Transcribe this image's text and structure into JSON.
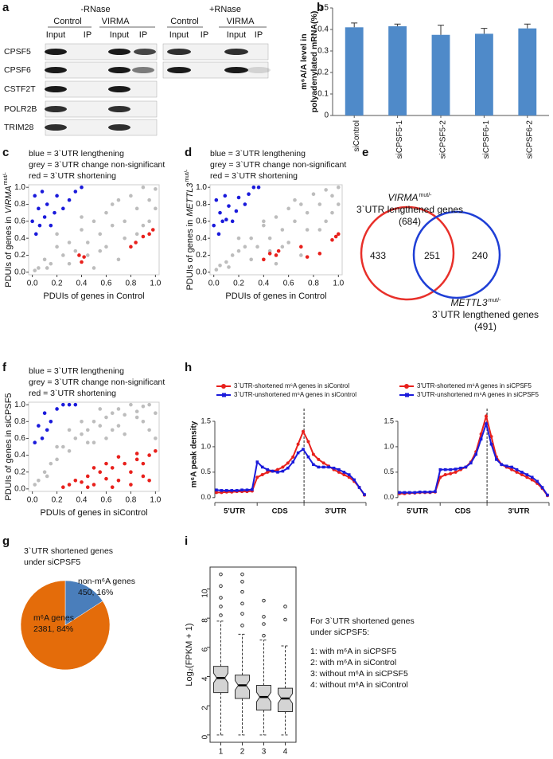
{
  "panel_labels": [
    "a",
    "b",
    "c",
    "d",
    "e",
    "f",
    "g",
    "h",
    "i"
  ],
  "blot": {
    "minus_rnase": "-RNase",
    "plus_rnase": "+RNase",
    "groups": [
      "Control",
      "VIRMA",
      "Control",
      "VIRMA"
    ],
    "lanes": [
      "Input",
      "IP",
      "Input",
      "IP",
      "Input",
      "IP",
      "Input",
      "IP"
    ],
    "proteins": [
      "CPSF5",
      "CPSF6",
      "CSTF2T",
      "POLR2B",
      "TRIM28"
    ]
  },
  "venn": {
    "sets": [
      {
        "label": "VIRMA",
        "sup": "mut/-",
        "desc": "3`UTR lengthened genes",
        "total": "(684)",
        "color": "#e8302a"
      },
      {
        "label": "METTL3",
        "sup": "mut/-",
        "desc": "3`UTR lengthened genes",
        "total": "(491)",
        "color": "#1f3fd6"
      }
    ],
    "only_first": 433,
    "both": 251,
    "only_second": 240
  },
  "chart_data": [
    {
      "type": "bar",
      "ylabel": [
        "m⁶A/A level in",
        "polyadenylated mRNA(%)"
      ],
      "categories": [
        "siControl",
        "siCPSF5-1",
        "siCPSF5-2",
        "siCPSF6-1",
        "siCPSF6-2"
      ],
      "values": [
        0.41,
        0.415,
        0.375,
        0.38,
        0.405
      ],
      "errors": [
        0.02,
        0.01,
        0.045,
        0.025,
        0.02
      ],
      "color": "#4f8ac9",
      "ylim": [
        0,
        0.5
      ],
      "yticks": [
        0,
        0.1,
        0.2,
        0.3,
        0.4,
        0.5
      ]
    },
    {
      "type": "scatter",
      "legend_lines": [
        "blue = 3`UTR lengthening",
        "grey = 3`UTR change non-significant",
        "red = 3`UTR shortening"
      ],
      "xlabel": "PDUIs of genes in Control",
      "ylabel": "PDUIs of genes in",
      "ylabel_gene": "VIRMA",
      "ylabel_sup": "mut/-",
      "xlim": [
        -0.03,
        1.03
      ],
      "ylim": [
        -0.03,
        1.03
      ],
      "xticks": [
        {
          "value": 0,
          "label": "0.0"
        },
        0.2,
        0.4,
        0.6,
        0.8,
        {
          "value": 1,
          "label": "1.0"
        }
      ],
      "yticks": [
        {
          "value": 0,
          "label": "0.0"
        },
        0.2,
        0.4,
        0.6,
        0.8,
        {
          "value": 1,
          "label": "1.0"
        }
      ],
      "series": [
        {
          "color": "#bdbdbd",
          "x": [
            0.05,
            0.1,
            0.15,
            0.2,
            0.25,
            0.3,
            0.35,
            0.4,
            0.45,
            0.5,
            0.55,
            0.6,
            0.65,
            0.7,
            0.75,
            0.8,
            0.85,
            0.9,
            0.95,
            1.0,
            0.3,
            0.45,
            0.6,
            0.75,
            0.9,
            0.5,
            0.7,
            0.85,
            0.2,
            0.4,
            0.02,
            0.12,
            0.55,
            0.95,
            1.0,
            0.65
          ],
          "y": [
            0.05,
            0.15,
            0.1,
            0.3,
            0.2,
            0.35,
            0.25,
            0.5,
            0.35,
            0.6,
            0.45,
            0.7,
            0.55,
            0.85,
            0.6,
            0.9,
            0.75,
            1.0,
            0.85,
            0.98,
            0.1,
            0.2,
            0.3,
            0.4,
            0.55,
            0.05,
            0.15,
            0.45,
            0.45,
            0.65,
            0.02,
            0.05,
            0.25,
            0.6,
            0.75,
            0.8
          ]
        },
        {
          "color": "#1a1adb",
          "x": [
            0.0,
            0.02,
            0.03,
            0.05,
            0.06,
            0.08,
            0.1,
            0.12,
            0.15,
            0.18,
            0.2,
            0.25,
            0.3,
            0.35,
            0.4
          ],
          "y": [
            0.6,
            0.9,
            0.45,
            0.75,
            0.55,
            0.95,
            0.65,
            0.8,
            0.55,
            0.7,
            0.9,
            0.75,
            0.85,
            0.95,
            1.0
          ]
        },
        {
          "color": "#e8201c",
          "x": [
            0.38,
            0.4,
            0.42,
            0.8,
            0.84,
            0.9,
            0.95,
            0.98
          ],
          "y": [
            0.2,
            0.12,
            0.18,
            0.3,
            0.35,
            0.42,
            0.45,
            0.5
          ]
        }
      ]
    },
    {
      "type": "scatter",
      "legend_lines": [
        "blue = 3`UTR lengthening",
        "grey = 3`UTR change non-significant",
        "red = 3`UTR shortening"
      ],
      "xlabel": "PDUIs of genes in Control",
      "ylabel": "PDUIs of genes in",
      "ylabel_gene": "METTL3",
      "ylabel_sup": "mut/-",
      "xlim": [
        -0.03,
        1.03
      ],
      "ylim": [
        -0.03,
        1.03
      ],
      "xticks": [
        {
          "value": 0,
          "label": "0.0"
        },
        0.2,
        0.4,
        0.6,
        0.8,
        {
          "value": 1,
          "label": "1.0"
        }
      ],
      "yticks": [
        {
          "value": 0,
          "label": "0.0"
        },
        0.2,
        0.4,
        0.6,
        0.8,
        {
          "value": 1,
          "label": "1.0"
        }
      ],
      "series": [
        {
          "color": "#bdbdbd",
          "x": [
            0.05,
            0.1,
            0.15,
            0.2,
            0.25,
            0.3,
            0.35,
            0.4,
            0.45,
            0.5,
            0.55,
            0.6,
            0.65,
            0.7,
            0.75,
            0.8,
            0.85,
            0.9,
            0.95,
            1.0,
            0.3,
            0.45,
            0.6,
            0.75,
            0.9,
            0.5,
            0.7,
            0.85,
            0.2,
            0.4,
            0.02,
            0.12,
            0.55,
            0.95,
            1.0,
            0.65
          ],
          "y": [
            0.08,
            0.12,
            0.2,
            0.25,
            0.3,
            0.4,
            0.3,
            0.55,
            0.4,
            0.65,
            0.5,
            0.75,
            0.6,
            0.8,
            0.7,
            0.92,
            0.8,
            0.97,
            0.9,
            1.0,
            0.15,
            0.25,
            0.35,
            0.5,
            0.6,
            0.1,
            0.2,
            0.5,
            0.4,
            0.6,
            0.03,
            0.06,
            0.3,
            0.7,
            0.8,
            0.85
          ]
        },
        {
          "color": "#1a1adb",
          "x": [
            0.0,
            0.02,
            0.04,
            0.05,
            0.07,
            0.09,
            0.1,
            0.12,
            0.15,
            0.18,
            0.2,
            0.25,
            0.28,
            0.32,
            0.36
          ],
          "y": [
            0.55,
            0.85,
            0.45,
            0.7,
            0.6,
            0.9,
            0.62,
            0.78,
            0.6,
            0.72,
            0.88,
            0.8,
            0.92,
            1.0,
            1.0
          ]
        },
        {
          "color": "#e8201c",
          "x": [
            0.4,
            0.45,
            0.5,
            0.52,
            0.7,
            0.75,
            0.85,
            0.95,
            0.98,
            1.0
          ],
          "y": [
            0.15,
            0.22,
            0.2,
            0.25,
            0.3,
            0.18,
            0.22,
            0.38,
            0.42,
            0.45
          ]
        }
      ]
    },
    {
      "type": "scatter",
      "legend_lines": [
        "blue = 3`UTR lengthening",
        "grey = 3`UTR change non-significant",
        "red = 3`UTR shortening"
      ],
      "xlabel": "PDUIs of genes in siControl",
      "ylabel": "PDUIs of genes in siCPSF5",
      "xlim": [
        -0.03,
        1.03
      ],
      "ylim": [
        -0.03,
        1.03
      ],
      "xticks": [
        {
          "value": 0,
          "label": "0.0"
        },
        0.2,
        0.4,
        0.6,
        0.8,
        {
          "value": 1,
          "label": "1.0"
        }
      ],
      "yticks": [
        {
          "value": 0,
          "label": "0.0"
        },
        0.2,
        0.4,
        0.6,
        0.8,
        {
          "value": 1,
          "label": "1.0"
        }
      ],
      "series": [
        {
          "color": "#bdbdbd",
          "x": [
            0.05,
            0.1,
            0.15,
            0.2,
            0.25,
            0.3,
            0.35,
            0.4,
            0.45,
            0.5,
            0.55,
            0.6,
            0.65,
            0.7,
            0.75,
            0.8,
            0.85,
            0.9,
            0.95,
            1.0,
            0.3,
            0.45,
            0.6,
            0.75,
            0.9,
            0.5,
            0.7,
            0.85,
            0.2,
            0.4,
            0.02,
            0.12,
            0.55,
            0.95,
            1.0,
            0.65
          ],
          "y": [
            0.1,
            0.2,
            0.3,
            0.35,
            0.5,
            0.45,
            0.6,
            0.65,
            0.7,
            0.8,
            0.75,
            0.85,
            0.9,
            0.95,
            0.88,
            1.0,
            0.92,
            0.98,
            0.7,
            0.9,
            0.7,
            0.55,
            0.6,
            0.65,
            0.8,
            0.55,
            0.75,
            0.85,
            0.5,
            0.8,
            0.05,
            0.15,
            0.95,
            1.0,
            0.6,
            0.7
          ]
        },
        {
          "color": "#1a1adb",
          "x": [
            0.02,
            0.05,
            0.08,
            0.1,
            0.12,
            0.15,
            0.2,
            0.25,
            0.3,
            0.35
          ],
          "y": [
            0.55,
            0.75,
            0.6,
            0.9,
            0.7,
            0.8,
            0.95,
            1.0,
            1.0,
            1.0
          ]
        },
        {
          "color": "#e8201c",
          "x": [
            0.25,
            0.3,
            0.35,
            0.4,
            0.45,
            0.5,
            0.55,
            0.6,
            0.65,
            0.7,
            0.75,
            0.8,
            0.85,
            0.9,
            0.95,
            1.0,
            0.5,
            0.6,
            0.7,
            0.8,
            0.9,
            0.95,
            0.45,
            0.65,
            0.85
          ],
          "y": [
            0.02,
            0.05,
            0.1,
            0.08,
            0.15,
            0.05,
            0.2,
            0.12,
            0.25,
            0.1,
            0.3,
            0.2,
            0.35,
            0.15,
            0.4,
            0.45,
            0.25,
            0.3,
            0.38,
            0.05,
            0.3,
            0.1,
            0.02,
            0.02,
            0.42
          ]
        }
      ]
    },
    {
      "type": "pie",
      "title": [
        "3`UTR shortened genes",
        "under siCPSF5"
      ],
      "categories": [
        "non-m⁶A genes",
        "m⁶A genes"
      ],
      "values": [
        450,
        2381
      ],
      "value_labels": [
        "450, 16%",
        "2381, 84%"
      ],
      "colors": [
        "#4a7ebb",
        "#e46c0a"
      ]
    },
    {
      "type": "line",
      "ylabel": "m⁶A peak density",
      "regions": [
        "5'UTR",
        "CDS",
        "3'UTR"
      ],
      "ylim": [
        -0.05,
        1.75
      ],
      "yticks": [
        {
          "value": 0,
          "label": "0.0"
        },
        0.5,
        {
          "value": 1,
          "label": "1.0"
        },
        1.5
      ],
      "series": [
        {
          "name": "3`UTR-shortened m⁶A genes in siControl",
          "color": "#e8201c",
          "values": [
            0.1,
            0.1,
            0.11,
            0.11,
            0.12,
            0.12,
            0.12,
            0.13,
            0.4,
            0.45,
            0.5,
            0.52,
            0.55,
            0.6,
            0.68,
            0.8,
            1.05,
            1.3,
            1.1,
            0.85,
            0.75,
            0.68,
            0.62,
            0.55,
            0.5,
            0.45,
            0.4,
            0.32,
            0.2,
            0.05
          ]
        },
        {
          "name": "3`UTR-unshortened m⁶A genes in siControl",
          "color": "#1a1adb",
          "values": [
            0.15,
            0.14,
            0.14,
            0.14,
            0.14,
            0.15,
            0.15,
            0.16,
            0.7,
            0.6,
            0.55,
            0.52,
            0.5,
            0.52,
            0.58,
            0.7,
            0.88,
            0.95,
            0.8,
            0.65,
            0.6,
            0.6,
            0.6,
            0.58,
            0.55,
            0.5,
            0.45,
            0.35,
            0.2,
            0.06
          ]
        }
      ]
    },
    {
      "type": "line",
      "regions": [
        "5'UTR",
        "CDS",
        "3'UTR"
      ],
      "ylim": [
        -0.05,
        1.75
      ],
      "yticks": [
        {
          "value": 0,
          "label": "0.0"
        },
        0.5,
        {
          "value": 1,
          "label": "1.0"
        },
        1.5
      ],
      "series": [
        {
          "name": "3'UTR-shortened m⁶A genes in siCPSF5",
          "color": "#e8201c",
          "values": [
            0.08,
            0.08,
            0.09,
            0.09,
            0.1,
            0.1,
            0.1,
            0.11,
            0.4,
            0.45,
            0.47,
            0.5,
            0.55,
            0.6,
            0.7,
            0.9,
            1.25,
            1.6,
            1.2,
            0.8,
            0.65,
            0.6,
            0.55,
            0.5,
            0.45,
            0.4,
            0.35,
            0.28,
            0.18,
            0.04
          ]
        },
        {
          "name": "3'UTR-unshortened m⁶A genes in siCPSF5",
          "color": "#1a1adb",
          "values": [
            0.1,
            0.1,
            0.1,
            0.1,
            0.11,
            0.11,
            0.11,
            0.12,
            0.55,
            0.55,
            0.55,
            0.56,
            0.58,
            0.6,
            0.68,
            0.85,
            1.15,
            1.45,
            1.05,
            0.75,
            0.65,
            0.62,
            0.6,
            0.55,
            0.5,
            0.45,
            0.4,
            0.32,
            0.2,
            0.05
          ]
        }
      ]
    },
    {
      "type": "box",
      "ylabel": "Log₂(FPKM + 1)",
      "categories": [
        "1",
        "2",
        "3",
        "4"
      ],
      "min": [
        0,
        0,
        0,
        0
      ],
      "q1": [
        2.9,
        2.5,
        1.7,
        1.6
      ],
      "median": [
        3.9,
        3.4,
        2.6,
        2.5
      ],
      "q3": [
        4.7,
        4.1,
        3.4,
        3.2
      ],
      "max": [
        7.8,
        6.9,
        6.5,
        6.1
      ],
      "outliers": [
        [
          8.2,
          8.8,
          9.4,
          10.2,
          11
        ],
        [
          7.5,
          8.3,
          9.0,
          9.8,
          10.5,
          11
        ],
        [
          6.8,
          7.6,
          8.1,
          9.2
        ],
        [
          7.9,
          8.8
        ]
      ],
      "ylim": [
        -0.5,
        11.5
      ],
      "yticks": [
        0,
        2,
        4,
        6,
        8,
        10
      ],
      "notes": [
        "For 3`UTR shortened genes",
        "under siCPSF5:",
        "1: with m⁶A in siCPSF5",
        "2: with m⁶A in siControl",
        "3: without m⁶A in siCPSF5",
        "4: without m⁶A in siControl"
      ]
    }
  ]
}
